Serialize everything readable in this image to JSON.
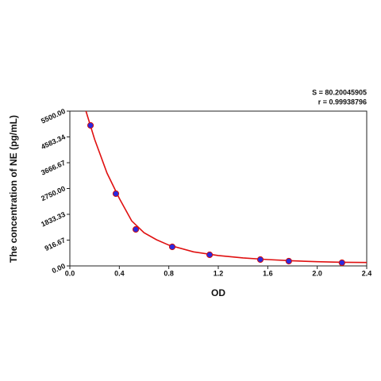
{
  "chart_data": {
    "type": "scatter",
    "annotations": [
      "S = 80.20045905",
      "r = 0.99938796"
    ],
    "x_label": "OD",
    "y_label": "The concentration of NE (pg/mL)",
    "xlim": [
      0,
      2.4
    ],
    "ylim": [
      0,
      5500
    ],
    "xticks": [
      {
        "value": 0,
        "label": "0.0"
      },
      0.4,
      0.8,
      1.2,
      1.6,
      {
        "value": 2,
        "label": "2.0"
      },
      2.4
    ],
    "yticks": [
      {
        "value": 0,
        "label": "0.00"
      },
      {
        "value": 916.67,
        "label": "916.67"
      },
      {
        "value": 1833.33,
        "label": "1833.33"
      },
      {
        "value": 2750,
        "label": "2750.00"
      },
      {
        "value": 3666.67,
        "label": "3666.67"
      },
      {
        "value": 4583.34,
        "label": "4583.34"
      },
      {
        "value": 5500,
        "label": "5500.00"
      }
    ],
    "grid": false,
    "points": {
      "color": "#2a2ae0",
      "edge": "#d01010",
      "x": [
        0.167,
        0.372,
        0.533,
        0.828,
        1.13,
        1.54,
        1.77,
        2.2
      ],
      "values": [
        4992,
        2566,
        1297,
        677,
        395,
        226,
        169,
        113
      ]
    },
    "fit": {
      "color": "#e01010",
      "x": [
        0.13,
        0.2,
        0.3,
        0.4,
        0.5,
        0.6,
        0.7,
        0.8,
        1.0,
        1.2,
        1.4,
        1.6,
        1.8,
        2.0,
        2.2,
        2.4
      ],
      "values": [
        5500,
        4500,
        3300,
        2400,
        1600,
        1180,
        930,
        740,
        500,
        370,
        285,
        225,
        180,
        150,
        130,
        120
      ]
    }
  }
}
